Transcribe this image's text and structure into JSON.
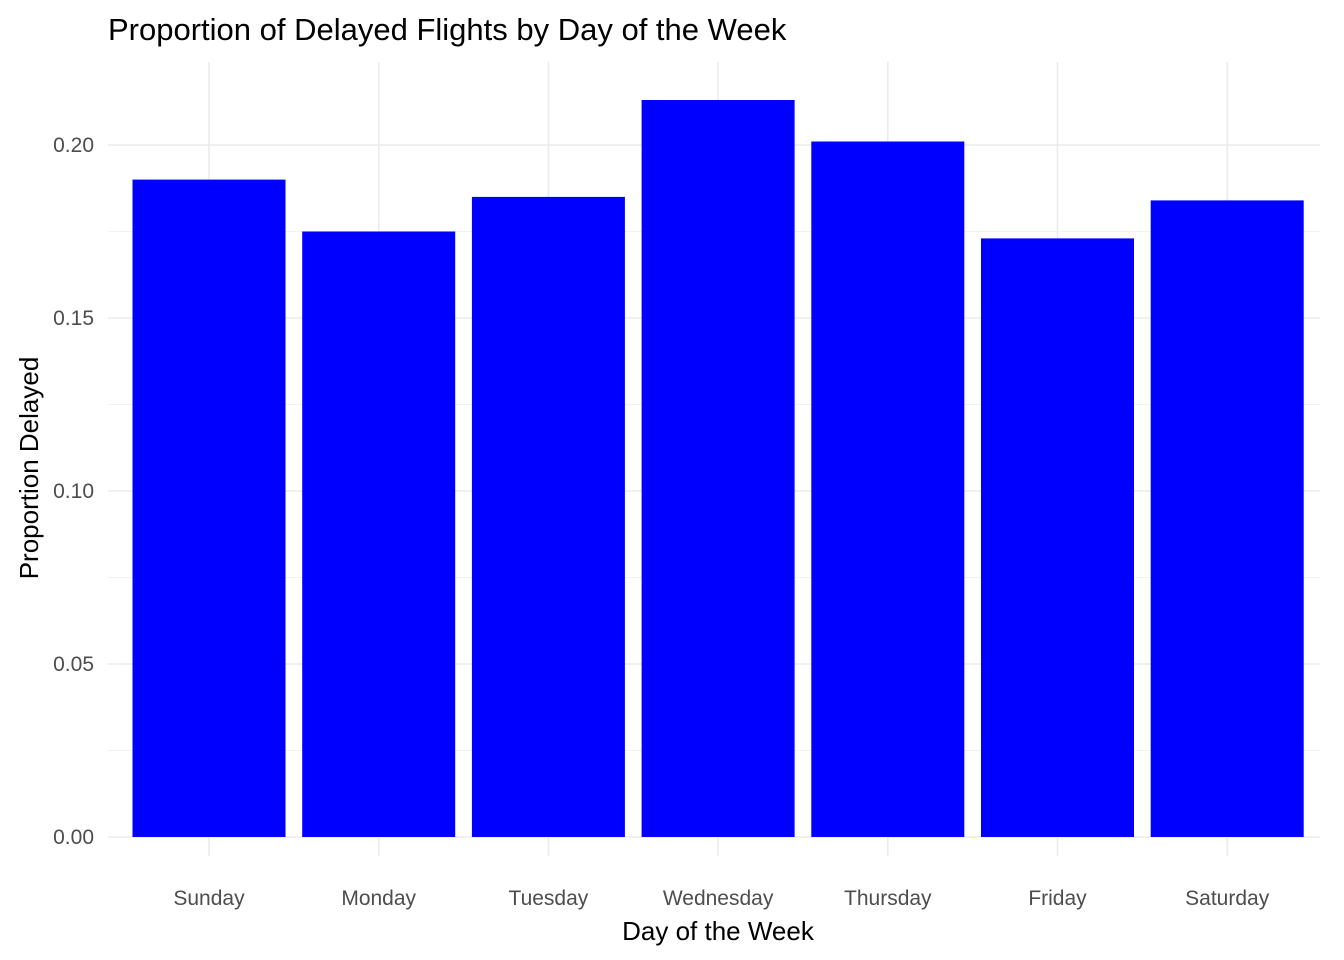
{
  "chart_data": {
    "type": "bar",
    "title": "Proportion of Delayed Flights by Day of the Week",
    "xlabel": "Day of the Week",
    "ylabel": "Proportion Delayed",
    "categories": [
      "Sunday",
      "Monday",
      "Tuesday",
      "Wednesday",
      "Thursday",
      "Friday",
      "Saturday"
    ],
    "values": [
      0.19,
      0.175,
      0.185,
      0.213,
      0.201,
      0.173,
      0.184
    ],
    "ylim": [
      0,
      0.224
    ],
    "yticks": [
      0.0,
      0.05,
      0.1,
      0.15,
      0.2
    ],
    "ytick_labels": [
      "0.00",
      "0.05",
      "0.10",
      "0.15",
      "0.20"
    ],
    "bar_color": "#0000FF",
    "grid": true,
    "legend": "none"
  }
}
